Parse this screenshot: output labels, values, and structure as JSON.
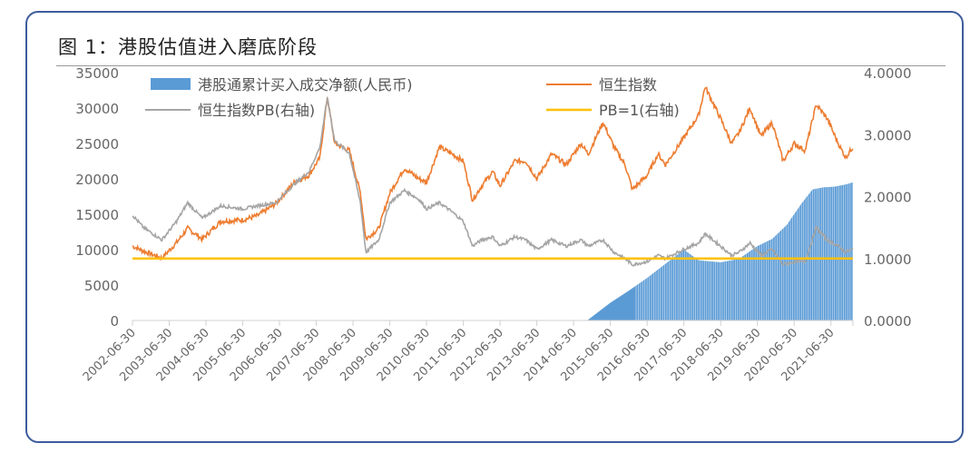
{
  "chart_data": {
    "type": "line",
    "title": "图 1：港股估值进入磨底阶段",
    "x_tick_labels": [
      "2002-06-30",
      "2003-06-30",
      "2004-06-30",
      "2005-06-30",
      "2006-06-30",
      "2007-06-30",
      "2008-06-30",
      "2009-06-30",
      "2010-06-30",
      "2011-06-30",
      "2012-06-30",
      "2013-06-30",
      "2014-06-30",
      "2015-06-30",
      "2016-06-30",
      "2017-06-30",
      "2018-06-30",
      "2019-06-30",
      "2020-06-30",
      "2021-06-30"
    ],
    "x_range": [
      2002.5,
      2022.1
    ],
    "left_axis": {
      "ylim": [
        0,
        35000
      ],
      "ticks": [
        "0",
        "5000",
        "10000",
        "15000",
        "20000",
        "25000",
        "30000",
        "35000"
      ]
    },
    "right_axis": {
      "ylim": [
        0,
        4
      ],
      "ticks": [
        "0.0000",
        "1.0000",
        "2.0000",
        "3.0000",
        "4.0000"
      ]
    },
    "legend_placement": "top",
    "series": [
      {
        "name": "港股通累计买入成交净额(人民币)",
        "type": "bar-area",
        "axis": "left",
        "color": "#5b9bd5",
        "points": [
          [
            2014.87,
            0
          ],
          [
            2015.5,
            2500
          ],
          [
            2016.0,
            4200
          ],
          [
            2016.5,
            6000
          ],
          [
            2017.0,
            8000
          ],
          [
            2017.5,
            10000
          ],
          [
            2017.9,
            8500
          ],
          [
            2018.5,
            8200
          ],
          [
            2019.0,
            8700
          ],
          [
            2019.5,
            10500
          ],
          [
            2019.9,
            11500
          ],
          [
            2020.3,
            13500
          ],
          [
            2020.7,
            16500
          ],
          [
            2021.0,
            18500
          ],
          [
            2021.3,
            18800
          ],
          [
            2021.6,
            18900
          ],
          [
            2021.9,
            19200
          ],
          [
            2022.1,
            19500
          ]
        ]
      },
      {
        "name": "恒生指数",
        "type": "line",
        "axis": "left",
        "color": "#ed7d31",
        "points": [
          [
            2002.5,
            10500
          ],
          [
            2002.8,
            9800
          ],
          [
            2003.3,
            8800
          ],
          [
            2003.7,
            11000
          ],
          [
            2004.0,
            13000
          ],
          [
            2004.4,
            11500
          ],
          [
            2004.9,
            14000
          ],
          [
            2005.5,
            14200
          ],
          [
            2005.9,
            14800
          ],
          [
            2006.4,
            16500
          ],
          [
            2006.9,
            19500
          ],
          [
            2007.3,
            20500
          ],
          [
            2007.6,
            23000
          ],
          [
            2007.8,
            31600
          ],
          [
            2008.0,
            25000
          ],
          [
            2008.4,
            24000
          ],
          [
            2008.7,
            18000
          ],
          [
            2008.85,
            11500
          ],
          [
            2009.2,
            13000
          ],
          [
            2009.5,
            18000
          ],
          [
            2009.9,
            21500
          ],
          [
            2010.3,
            20000
          ],
          [
            2010.5,
            19500
          ],
          [
            2010.85,
            24500
          ],
          [
            2011.2,
            23500
          ],
          [
            2011.5,
            22500
          ],
          [
            2011.75,
            17000
          ],
          [
            2012.0,
            19000
          ],
          [
            2012.3,
            21000
          ],
          [
            2012.5,
            19000
          ],
          [
            2012.9,
            22500
          ],
          [
            2013.2,
            22500
          ],
          [
            2013.5,
            20000
          ],
          [
            2013.9,
            23500
          ],
          [
            2014.3,
            22000
          ],
          [
            2014.7,
            25000
          ],
          [
            2014.9,
            23500
          ],
          [
            2015.3,
            28000
          ],
          [
            2015.6,
            24500
          ],
          [
            2015.9,
            22000
          ],
          [
            2016.1,
            18500
          ],
          [
            2016.5,
            20500
          ],
          [
            2016.8,
            23500
          ],
          [
            2017.0,
            22000
          ],
          [
            2017.5,
            25800
          ],
          [
            2017.9,
            29000
          ],
          [
            2018.08,
            33000
          ],
          [
            2018.5,
            28500
          ],
          [
            2018.8,
            25000
          ],
          [
            2019.0,
            26500
          ],
          [
            2019.3,
            30000
          ],
          [
            2019.6,
            26000
          ],
          [
            2019.9,
            28000
          ],
          [
            2020.2,
            22500
          ],
          [
            2020.5,
            25000
          ],
          [
            2020.8,
            24000
          ],
          [
            2021.1,
            30500
          ],
          [
            2021.4,
            28500
          ],
          [
            2021.7,
            25000
          ],
          [
            2021.9,
            23000
          ],
          [
            2022.1,
            24500
          ]
        ]
      },
      {
        "name": "恒生指数PB(右轴)",
        "type": "line",
        "axis": "right",
        "color": "#a5a5a5",
        "points": [
          [
            2002.5,
            1.7
          ],
          [
            2002.8,
            1.5
          ],
          [
            2003.3,
            1.3
          ],
          [
            2003.7,
            1.6
          ],
          [
            2004.0,
            1.9
          ],
          [
            2004.4,
            1.65
          ],
          [
            2004.9,
            1.85
          ],
          [
            2005.5,
            1.8
          ],
          [
            2005.9,
            1.85
          ],
          [
            2006.4,
            1.9
          ],
          [
            2006.9,
            2.2
          ],
          [
            2007.3,
            2.4
          ],
          [
            2007.6,
            2.8
          ],
          [
            2007.8,
            3.6
          ],
          [
            2008.0,
            2.9
          ],
          [
            2008.4,
            2.7
          ],
          [
            2008.7,
            1.9
          ],
          [
            2008.85,
            1.1
          ],
          [
            2009.2,
            1.3
          ],
          [
            2009.5,
            1.9
          ],
          [
            2009.9,
            2.1
          ],
          [
            2010.3,
            1.95
          ],
          [
            2010.5,
            1.8
          ],
          [
            2010.85,
            1.9
          ],
          [
            2011.2,
            1.75
          ],
          [
            2011.5,
            1.6
          ],
          [
            2011.75,
            1.2
          ],
          [
            2012.0,
            1.3
          ],
          [
            2012.3,
            1.35
          ],
          [
            2012.5,
            1.2
          ],
          [
            2012.9,
            1.35
          ],
          [
            2013.2,
            1.3
          ],
          [
            2013.5,
            1.15
          ],
          [
            2013.9,
            1.3
          ],
          [
            2014.3,
            1.2
          ],
          [
            2014.7,
            1.3
          ],
          [
            2014.9,
            1.2
          ],
          [
            2015.3,
            1.3
          ],
          [
            2015.6,
            1.1
          ],
          [
            2015.9,
            1.0
          ],
          [
            2016.1,
            0.9
          ],
          [
            2016.5,
            0.95
          ],
          [
            2016.8,
            1.05
          ],
          [
            2017.0,
            1.0
          ],
          [
            2017.5,
            1.15
          ],
          [
            2017.9,
            1.25
          ],
          [
            2018.08,
            1.4
          ],
          [
            2018.5,
            1.2
          ],
          [
            2018.8,
            1.05
          ],
          [
            2019.0,
            1.1
          ],
          [
            2019.3,
            1.25
          ],
          [
            2019.6,
            1.05
          ],
          [
            2019.9,
            1.15
          ],
          [
            2020.2,
            0.9
          ],
          [
            2020.5,
            0.95
          ],
          [
            2020.8,
            0.95
          ],
          [
            2021.1,
            1.5
          ],
          [
            2021.4,
            1.3
          ],
          [
            2021.7,
            1.2
          ],
          [
            2021.9,
            1.1
          ],
          [
            2022.1,
            1.15
          ]
        ]
      },
      {
        "name": "PB=1(右轴)",
        "type": "line",
        "axis": "right",
        "color": "#ffc000",
        "points": [
          [
            2002.5,
            1.0
          ],
          [
            2022.1,
            1.0
          ]
        ]
      }
    ]
  }
}
